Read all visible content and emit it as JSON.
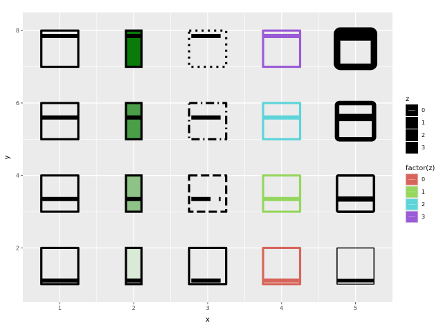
{
  "chart_data": {
    "type": "rect",
    "title": "",
    "xlabel": "x",
    "ylabel": "y",
    "xlim": [
      0.5,
      5.5
    ],
    "ylim": [
      0.5,
      8.5
    ],
    "x_ticks": [
      1,
      2,
      3,
      4,
      5
    ],
    "y_ticks": [
      2,
      4,
      6,
      8
    ],
    "grid": true,
    "background": "#ebebeb",
    "grid_color": "#ffffff",
    "rect_width": 0.5,
    "rect_height": 1.0,
    "z_levels": [
      0,
      1,
      2,
      3
    ],
    "factor_colors": [
      "#d8655b",
      "#95d65d",
      "#5cd4da",
      "#9a5bd6"
    ],
    "green_fills": [
      "#d9ead6",
      "#8dc386",
      "#4a9e48",
      "#0a7a0a"
    ],
    "linetypes": [
      "solid",
      "dashed",
      "dashdot",
      "dotted"
    ],
    "columns": [
      {
        "x": 1,
        "description": "black outline, inner band at z"
      },
      {
        "x": 2,
        "description": "black outline, fill alpha by z"
      },
      {
        "x": 3,
        "description": "black outline, linetype by z"
      },
      {
        "x": 4,
        "description": "outline colored by factor(z)"
      },
      {
        "x": 5,
        "description": "black outline, line size by z"
      }
    ],
    "rows": [
      {
        "y": 1.5,
        "z": 0
      },
      {
        "y": 3.5,
        "z": 1
      },
      {
        "y": 5.5,
        "z": 2
      },
      {
        "y": 7.5,
        "z": 3
      }
    ],
    "legends": [
      {
        "title": "z",
        "labels": [
          "0",
          "1",
          "2",
          "3"
        ]
      },
      {
        "title": "factor(z)",
        "labels": [
          "0",
          "1",
          "2",
          "3"
        ]
      }
    ],
    "legend_position": "right"
  }
}
